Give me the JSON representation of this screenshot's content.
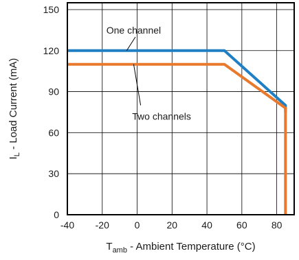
{
  "chart_data": {
    "type": "line",
    "xlabel": {
      "main": "T",
      "sub": "amb",
      "rest": " - Ambient Temperature (°C)"
    },
    "ylabel": {
      "main": "I",
      "sub": "L",
      "rest": " - Load Current (mA)"
    },
    "xlim": [
      -40,
      90
    ],
    "ylim": [
      0,
      155
    ],
    "xticks": [
      -40,
      -20,
      0,
      20,
      40,
      60,
      80
    ],
    "yticks": [
      0,
      30,
      60,
      90,
      120,
      150
    ],
    "grid": true,
    "series": [
      {
        "name": "One channel",
        "color": "#1f7fc4",
        "x": [
          -40,
          50,
          85,
          85
        ],
        "y": [
          120,
          120,
          80,
          75
        ]
      },
      {
        "name": "Two channels",
        "color": "#e8792d",
        "x": [
          -40,
          50,
          85,
          85
        ],
        "y": [
          110,
          110,
          78,
          0
        ]
      }
    ],
    "annotations": [
      {
        "text": "One channel",
        "series": 0
      },
      {
        "text": "Two channels",
        "series": 1
      }
    ]
  }
}
